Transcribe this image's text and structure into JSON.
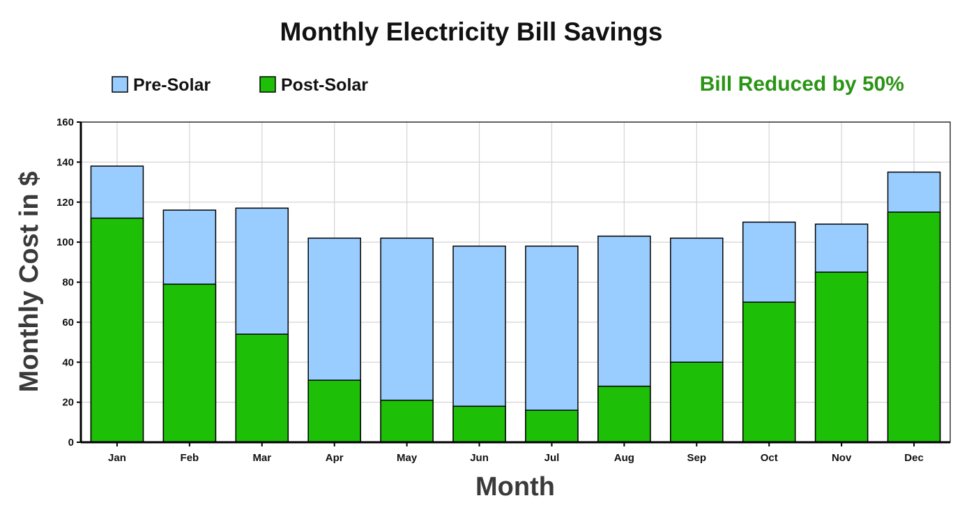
{
  "colors": {
    "pre_solar": "#99CCFF",
    "post_solar": "#1DBF07",
    "note": "#2A9414",
    "grid": "#D4D4D4",
    "axis": "#000000"
  },
  "chart_data": {
    "type": "bar",
    "stacked_overlay": true,
    "title": "Monthly Electricity Bill Savings",
    "xlabel": "Month",
    "ylabel": "Monthly Cost in $",
    "categories": [
      "Jan",
      "Feb",
      "Mar",
      "Apr",
      "May",
      "Jun",
      "Jul",
      "Aug",
      "Sep",
      "Oct",
      "Nov",
      "Dec"
    ],
    "series": [
      {
        "name": "Pre-Solar",
        "color": "#99CCFF",
        "values": [
          138,
          116,
          117,
          102,
          102,
          98,
          98,
          103,
          102,
          110,
          109,
          135
        ]
      },
      {
        "name": "Post-Solar",
        "color": "#1DBF07",
        "values": [
          112,
          79,
          54,
          31,
          21,
          18,
          16,
          28,
          40,
          70,
          85,
          115
        ]
      }
    ],
    "ylim": [
      0,
      160
    ],
    "yticks": [
      0,
      20,
      40,
      60,
      80,
      100,
      120,
      140,
      160
    ],
    "grid": true,
    "legend_position": "top-left",
    "annotation": "Bill Reduced by 50%"
  }
}
